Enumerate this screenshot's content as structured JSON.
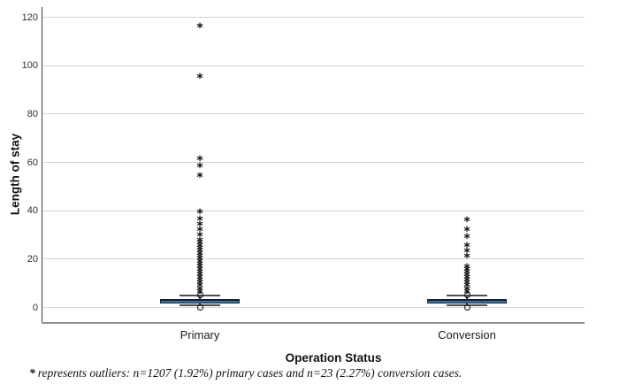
{
  "figure": {
    "ylabel": "Length of stay",
    "xlabel": "Operation Status",
    "footnote_marker": "*",
    "footnote_text": "represents outliers: n=1207 (1.92%) primary cases and n=23 (2.27%) conversion cases."
  },
  "chart_data": {
    "type": "boxplot",
    "title": "",
    "xlabel": "Operation Status",
    "ylabel": "Length of stay",
    "ylim": [
      0,
      120
    ],
    "yticks": [
      0,
      20,
      40,
      60,
      80,
      100,
      120
    ],
    "grid": true,
    "legend": false,
    "extreme_marker": "*",
    "categories": [
      "Primary",
      "Conversion"
    ],
    "series": [
      {
        "name": "Primary",
        "q1": 2,
        "median": 3,
        "q3": 3.5,
        "whisker_low": 1,
        "whisker_high": 5,
        "extreme_outliers": [
          116,
          95,
          61,
          58,
          54,
          39.3,
          36.4,
          34.2,
          32,
          29.8,
          27.6,
          26.2,
          25.1,
          24,
          22.9,
          21.8,
          20.7,
          19.6,
          18.5,
          17.4,
          16.3,
          15.2,
          14.1,
          13,
          11.9,
          10.8,
          9.7,
          8.6,
          7.5,
          6.4
        ],
        "mild_outliers": [
          5.2,
          0
        ]
      },
      {
        "name": "Conversion",
        "q1": 2,
        "median": 3,
        "q3": 3.5,
        "whisker_low": 1,
        "whisker_high": 5,
        "extreme_outliers": [
          35.7,
          32,
          29,
          25.4,
          23,
          21,
          16.3,
          15.2,
          14.1,
          13,
          11.9,
          10.8,
          9.7,
          8.6,
          7.5,
          6.4
        ],
        "mild_outliers": [
          5.3,
          0
        ]
      }
    ],
    "footnote": "* represents outliers: n=1207 (1.92%) primary cases and n=23 (2.27%) conversion cases."
  },
  "colors": {
    "box_fill": "#3a76ad",
    "box_border": "#17242f",
    "median": "#101b24",
    "whisker": "#4f4f4f",
    "grid": "#d4d4d4",
    "y_axis_line": "#3d3d3d",
    "x_axis_line": "#8f8f8f",
    "marker": "#0d0d0d",
    "text": "#1c1c1c"
  }
}
